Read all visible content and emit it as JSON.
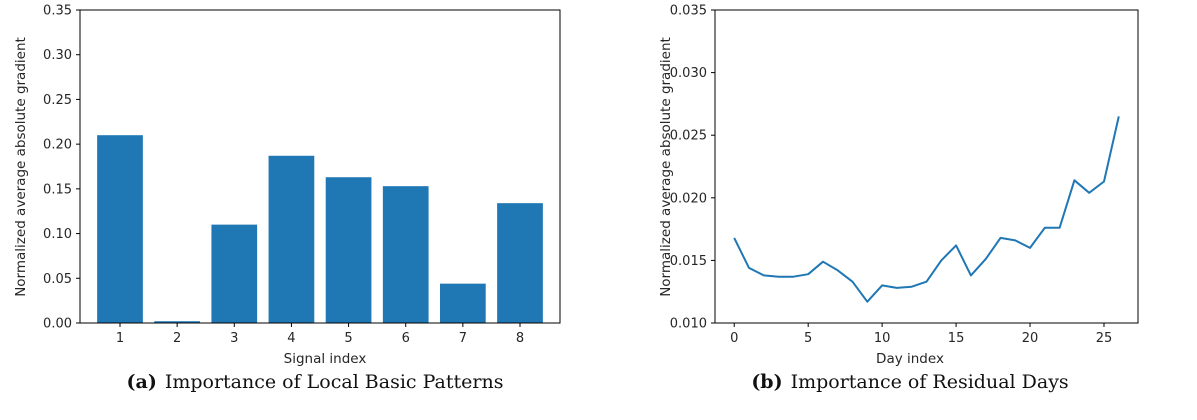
{
  "chart_data": [
    {
      "type": "bar",
      "categories": [
        "1",
        "2",
        "3",
        "4",
        "5",
        "6",
        "7",
        "8"
      ],
      "values": [
        0.21,
        0.002,
        0.11,
        0.187,
        0.163,
        0.153,
        0.044,
        0.134
      ],
      "xlabel": "Signal index",
      "ylabel": "Normalized average absolute gradient",
      "ylim": [
        0,
        0.35
      ],
      "yticks": [
        "0.00",
        "0.05",
        "0.10",
        "0.15",
        "0.20",
        "0.25",
        "0.30",
        "0.35"
      ],
      "bar_color": "#1f77b4",
      "grid": false,
      "caption_tag": "(a)",
      "caption_text": "Importance of Local Basic Patterns"
    },
    {
      "type": "line",
      "x": [
        0,
        1,
        2,
        3,
        4,
        5,
        6,
        7,
        8,
        9,
        10,
        11,
        12,
        13,
        14,
        15,
        16,
        17,
        18,
        19,
        20,
        21,
        22,
        23,
        24,
        25,
        26
      ],
      "values": [
        0.0168,
        0.0144,
        0.0138,
        0.0137,
        0.0137,
        0.0139,
        0.0149,
        0.0142,
        0.0133,
        0.0117,
        0.013,
        0.0128,
        0.0129,
        0.0133,
        0.015,
        0.0162,
        0.0138,
        0.0151,
        0.0168,
        0.0166,
        0.016,
        0.0176,
        0.0176,
        0.0214,
        0.0204,
        0.0213,
        0.0265
      ],
      "xlabel": "Day index",
      "ylabel": "Normalized average absolute gradient",
      "xlim": [
        -1.3,
        27.3
      ],
      "ylim": [
        0.01,
        0.035
      ],
      "xticks": [
        0,
        5,
        10,
        15,
        20,
        25
      ],
      "yticks": [
        "0.010",
        "0.015",
        "0.020",
        "0.025",
        "0.030",
        "0.035"
      ],
      "line_color": "#1f77b4",
      "grid": false,
      "caption_tag": "(b)",
      "caption_text": "Importance of Residual Days"
    }
  ]
}
